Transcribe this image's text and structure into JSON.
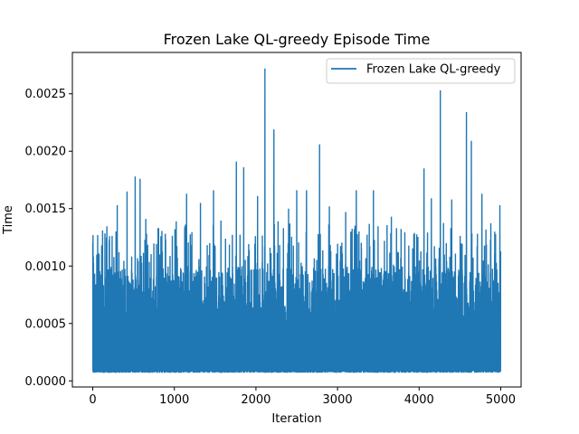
{
  "chart_data": {
    "type": "line",
    "title": "Frozen Lake QL-greedy Episode Time",
    "xlabel": "Iteration",
    "ylabel": "Time",
    "xlim": [
      -250,
      5250
    ],
    "ylim": [
      -5.3e-05,
      0.00286
    ],
    "xticks": [
      0,
      1000,
      2000,
      3000,
      4000,
      5000
    ],
    "xtick_labels": [
      "0",
      "1000",
      "2000",
      "3000",
      "4000",
      "5000"
    ],
    "yticks": [
      0.0,
      0.0005,
      0.001,
      0.0015,
      0.002,
      0.0025
    ],
    "ytick_labels": [
      "0.0000",
      "0.0005",
      "0.0010",
      "0.0015",
      "0.0020",
      "0.0025"
    ],
    "grid": false,
    "legend_position": "upper right",
    "n_points": 5000,
    "baseline_min": 7e-05,
    "series": [
      {
        "name": "Frozen Lake QL-greedy",
        "color": "#1f77b4",
        "peaks": [
          {
            "x": 0,
            "y": 0.0012
          },
          {
            "x": 60,
            "y": 0.00127
          },
          {
            "x": 120,
            "y": 0.00131
          },
          {
            "x": 300,
            "y": 0.00153
          },
          {
            "x": 420,
            "y": 0.00165
          },
          {
            "x": 520,
            "y": 0.00178
          },
          {
            "x": 580,
            "y": 0.00176
          },
          {
            "x": 650,
            "y": 0.00141
          },
          {
            "x": 800,
            "y": 0.00133
          },
          {
            "x": 1020,
            "y": 0.00116
          },
          {
            "x": 1150,
            "y": 0.00163
          },
          {
            "x": 1320,
            "y": 0.00155
          },
          {
            "x": 1480,
            "y": 0.00166
          },
          {
            "x": 1760,
            "y": 0.00191
          },
          {
            "x": 1850,
            "y": 0.00186
          },
          {
            "x": 2020,
            "y": 0.00161
          },
          {
            "x": 2110,
            "y": 0.00272
          },
          {
            "x": 2220,
            "y": 0.00219
          },
          {
            "x": 2400,
            "y": 0.0015
          },
          {
            "x": 2500,
            "y": 0.00166
          },
          {
            "x": 2620,
            "y": 0.00166
          },
          {
            "x": 2780,
            "y": 0.00206
          },
          {
            "x": 2900,
            "y": 0.00152
          },
          {
            "x": 3100,
            "y": 0.00147
          },
          {
            "x": 3230,
            "y": 0.00166
          },
          {
            "x": 3440,
            "y": 0.00166
          },
          {
            "x": 3660,
            "y": 0.00143
          },
          {
            "x": 4060,
            "y": 0.00185
          },
          {
            "x": 4150,
            "y": 0.00159
          },
          {
            "x": 4260,
            "y": 0.00253
          },
          {
            "x": 4400,
            "y": 0.00158
          },
          {
            "x": 4580,
            "y": 0.00234
          },
          {
            "x": 4640,
            "y": 0.00209
          },
          {
            "x": 4770,
            "y": 0.00163
          },
          {
            "x": 4990,
            "y": 0.00153
          }
        ]
      }
    ]
  }
}
